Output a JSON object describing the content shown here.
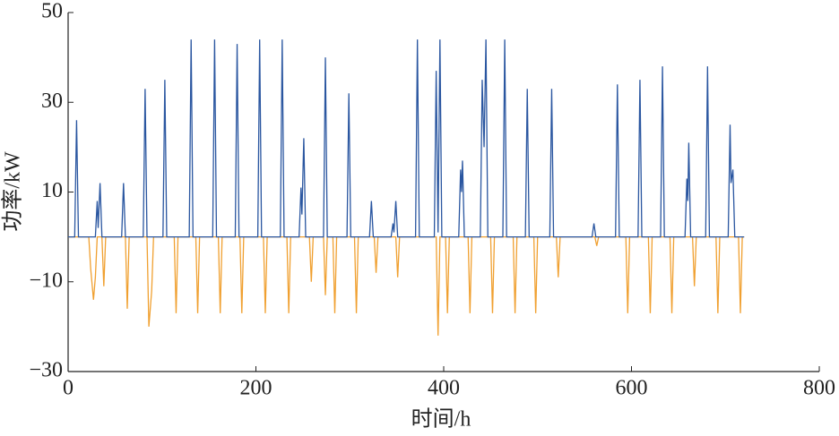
{
  "chart_data": {
    "type": "line",
    "xlabel": "时间/h",
    "ylabel": "功率/kW",
    "xlim": [
      0,
      800
    ],
    "xticks": [
      0,
      200,
      400,
      600,
      800
    ],
    "ylim": [
      -30,
      50
    ],
    "yticks": [
      50,
      30,
      10,
      {
        "value": -10,
        "label": "−10"
      },
      {
        "value": -30,
        "label": "−30"
      }
    ],
    "series": [
      {
        "color": "#2a56a0",
        "x": [
          0,
          7,
          9,
          11,
          29,
          31,
          32,
          34,
          36,
          57,
          59,
          61,
          80,
          82,
          84,
          101,
          103,
          105,
          129,
          131,
          133,
          154,
          156,
          158,
          178,
          180,
          182,
          202,
          204,
          206,
          226,
          228,
          230,
          246,
          248,
          249,
          251,
          253,
          272,
          274,
          276,
          297,
          299,
          301,
          321,
          323,
          325,
          344,
          346,
          347,
          349,
          351,
          370,
          372,
          374,
          390,
          392,
          394,
          396,
          398,
          416,
          418,
          419,
          420,
          422,
          439,
          441,
          443,
          445,
          447,
          463,
          465,
          467,
          487,
          489,
          491,
          513,
          515,
          517,
          558,
          560,
          562,
          583,
          585,
          587,
          607,
          609,
          611,
          631,
          633,
          635,
          657,
          659,
          660,
          661,
          663,
          679,
          681,
          683,
          703,
          705,
          706,
          708,
          710,
          720
        ],
        "values": [
          0,
          0,
          26,
          0,
          0,
          8,
          2,
          12,
          0,
          0,
          12,
          0,
          0,
          33,
          0,
          0,
          35,
          0,
          0,
          44,
          0,
          0,
          44,
          0,
          0,
          43,
          0,
          0,
          44,
          0,
          0,
          44,
          0,
          0,
          11,
          5,
          22,
          0,
          0,
          40,
          0,
          0,
          32,
          0,
          0,
          8,
          0,
          0,
          3,
          1,
          8,
          0,
          0,
          44,
          0,
          0,
          37,
          1,
          44,
          0,
          0,
          15,
          10,
          17,
          0,
          0,
          35,
          20,
          44,
          0,
          0,
          44,
          0,
          0,
          33,
          0,
          0,
          33,
          0,
          0,
          3,
          0,
          0,
          34,
          0,
          0,
          35,
          0,
          0,
          38,
          0,
          0,
          13,
          8,
          21,
          0,
          0,
          38,
          0,
          0,
          25,
          12,
          15,
          0,
          0
        ]
      },
      {
        "color": "#f0a030",
        "x": [
          0,
          22,
          24,
          27,
          29,
          31,
          36,
          38,
          40,
          61,
          63,
          65,
          84,
          86,
          89,
          91,
          113,
          115,
          117,
          136,
          138,
          140,
          160,
          162,
          164,
          183,
          185,
          187,
          208,
          210,
          212,
          233,
          235,
          237,
          257,
          259,
          261,
          272,
          274,
          276,
          282,
          284,
          286,
          305,
          307,
          309,
          326,
          328,
          330,
          349,
          351,
          353,
          392,
          394,
          396,
          402,
          404,
          406,
          426,
          428,
          430,
          450,
          452,
          454,
          474,
          476,
          478,
          496,
          498,
          500,
          520,
          522,
          524,
          561,
          563,
          565,
          594,
          596,
          598,
          618,
          620,
          622,
          641,
          643,
          645,
          665,
          667,
          669,
          690,
          692,
          694,
          714,
          716,
          718,
          720
        ],
        "values": [
          0,
          0,
          -7,
          -14,
          -9,
          0,
          0,
          -11,
          0,
          0,
          -16,
          0,
          0,
          -20,
          -12,
          0,
          0,
          -17,
          0,
          0,
          -17,
          0,
          0,
          -17,
          0,
          0,
          -17,
          0,
          0,
          -17,
          0,
          0,
          -17,
          0,
          0,
          -10,
          0,
          0,
          -13,
          0,
          0,
          -17,
          0,
          0,
          -17,
          0,
          0,
          -8,
          0,
          0,
          -9,
          0,
          0,
          -22,
          0,
          0,
          -17,
          0,
          0,
          -17,
          0,
          0,
          -17,
          0,
          0,
          -17,
          0,
          0,
          -17,
          0,
          0,
          -9,
          0,
          0,
          -2,
          0,
          0,
          -17,
          0,
          0,
          -17,
          0,
          0,
          -17,
          0,
          0,
          -11,
          0,
          0,
          -17,
          0,
          0,
          -17,
          0,
          0
        ]
      }
    ]
  }
}
